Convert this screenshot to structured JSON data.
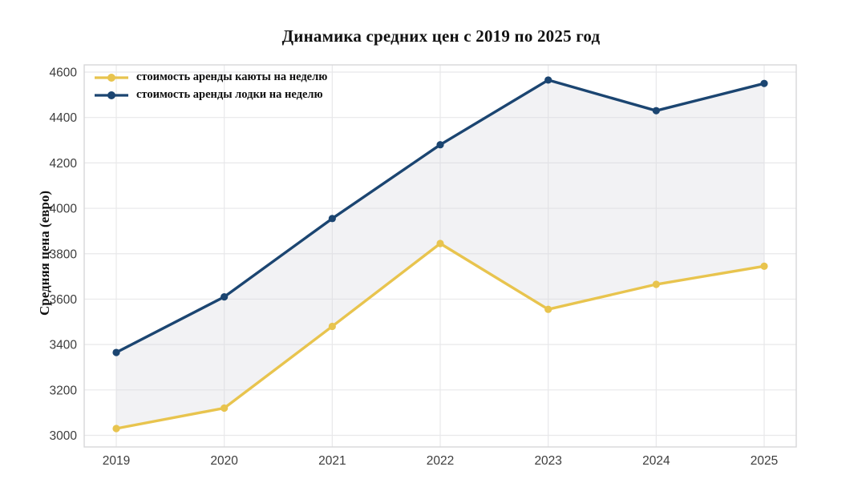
{
  "chart_data": {
    "type": "line",
    "title": "Динамика средних цен с 2019 по 2025 год",
    "xlabel": "",
    "ylabel": "Средняя цена (евро)",
    "categories": [
      "2019",
      "2020",
      "2021",
      "2022",
      "2023",
      "2024",
      "2025"
    ],
    "series": [
      {
        "name": "стоимость аренды каюты на неделю",
        "color": "#E8C44E",
        "marker": "circle",
        "values": [
          3030,
          3120,
          3480,
          3845,
          3555,
          3665,
          3745
        ]
      },
      {
        "name": "стоимость аренды лодки на неделю",
        "color": "#1B4571",
        "marker": "circle",
        "values": [
          3365,
          3610,
          3955,
          4280,
          4565,
          4430,
          4550
        ]
      }
    ],
    "ylim": [
      3000,
      4600
    ],
    "yticks": [
      3000,
      3200,
      3400,
      3600,
      3800,
      4000,
      4200,
      4400,
      4600
    ],
    "grid": true,
    "legend_position": "top-left",
    "band_fill_between_series": true,
    "colors": {
      "band_fill": "rgba(214,214,222,0.32)",
      "gridline": "#e8e8ea",
      "plot_border": "#d7d7d9",
      "tick_text": "#3d3d3d",
      "background": "#ffffff"
    }
  }
}
